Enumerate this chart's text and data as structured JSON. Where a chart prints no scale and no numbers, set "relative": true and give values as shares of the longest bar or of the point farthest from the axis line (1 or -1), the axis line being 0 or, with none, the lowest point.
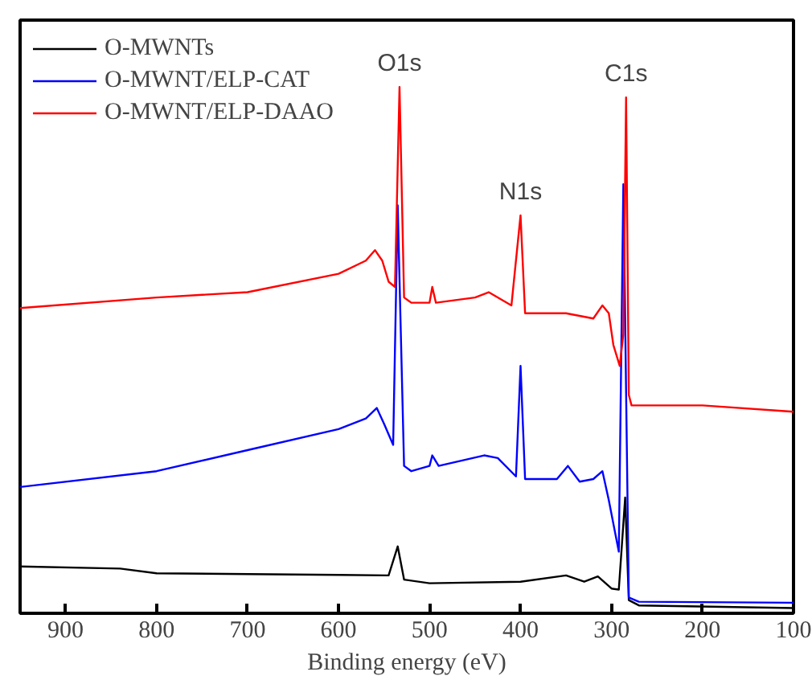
{
  "chart_data": {
    "type": "line",
    "xlabel": "Binding energy (eV)",
    "relative": true,
    "xlim": [
      950,
      100
    ],
    "xticks": [
      900,
      800,
      700,
      600,
      500,
      400,
      300,
      200,
      100
    ],
    "grid": false,
    "legend": "top left",
    "line_style": "solid",
    "marker": "none",
    "annotations": [
      {
        "text": "O1s",
        "x": 533,
        "y": 1.0
      },
      {
        "text": "N1s",
        "x": 400,
        "y": 0.756
      },
      {
        "text": "C1s",
        "x": 284,
        "y": 0.98
      }
    ],
    "series": [
      {
        "name": "O-MWNTs",
        "color": "#000000",
        "x": [
          950,
          840,
          800,
          600,
          545,
          535,
          528,
          500,
          400,
          350,
          330,
          315,
          300,
          292,
          285,
          281,
          270,
          100
        ],
        "values": [
          0.089,
          0.085,
          0.076,
          0.073,
          0.072,
          0.127,
          0.064,
          0.057,
          0.06,
          0.072,
          0.06,
          0.07,
          0.047,
          0.045,
          0.22,
          0.025,
          0.015,
          0.01
        ]
      },
      {
        "name": "O-MWNT/ELP-CAT",
        "color": "#0000ff",
        "x": [
          950,
          800,
          700,
          600,
          570,
          558,
          550,
          540,
          535,
          528,
          520,
          500,
          497,
          490,
          440,
          425,
          405,
          400,
          395,
          360,
          348,
          335,
          320,
          310,
          303,
          292,
          287,
          281,
          270,
          100
        ],
        "values": [
          0.24,
          0.27,
          0.31,
          0.35,
          0.37,
          0.39,
          0.36,
          0.32,
          0.775,
          0.28,
          0.27,
          0.28,
          0.3,
          0.28,
          0.3,
          0.295,
          0.26,
          0.47,
          0.255,
          0.255,
          0.28,
          0.25,
          0.255,
          0.27,
          0.215,
          0.117,
          0.815,
          0.03,
          0.022,
          0.02
        ]
      },
      {
        "name": "O-MWNT/ELP-DAAO",
        "color": "#ff0000",
        "x": [
          950,
          800,
          700,
          600,
          570,
          560,
          552,
          545,
          538,
          533,
          528,
          520,
          500,
          497,
          493,
          450,
          435,
          410,
          400,
          395,
          350,
          320,
          310,
          303,
          298,
          291,
          287,
          284,
          281,
          278,
          200,
          100
        ],
        "values": [
          0.58,
          0.6,
          0.61,
          0.645,
          0.67,
          0.69,
          0.67,
          0.63,
          0.62,
          1.0,
          0.6,
          0.59,
          0.59,
          0.62,
          0.59,
          0.6,
          0.61,
          0.585,
          0.756,
          0.57,
          0.57,
          0.56,
          0.585,
          0.57,
          0.51,
          0.47,
          0.53,
          0.98,
          0.415,
          0.395,
          0.395,
          0.383
        ]
      }
    ]
  }
}
